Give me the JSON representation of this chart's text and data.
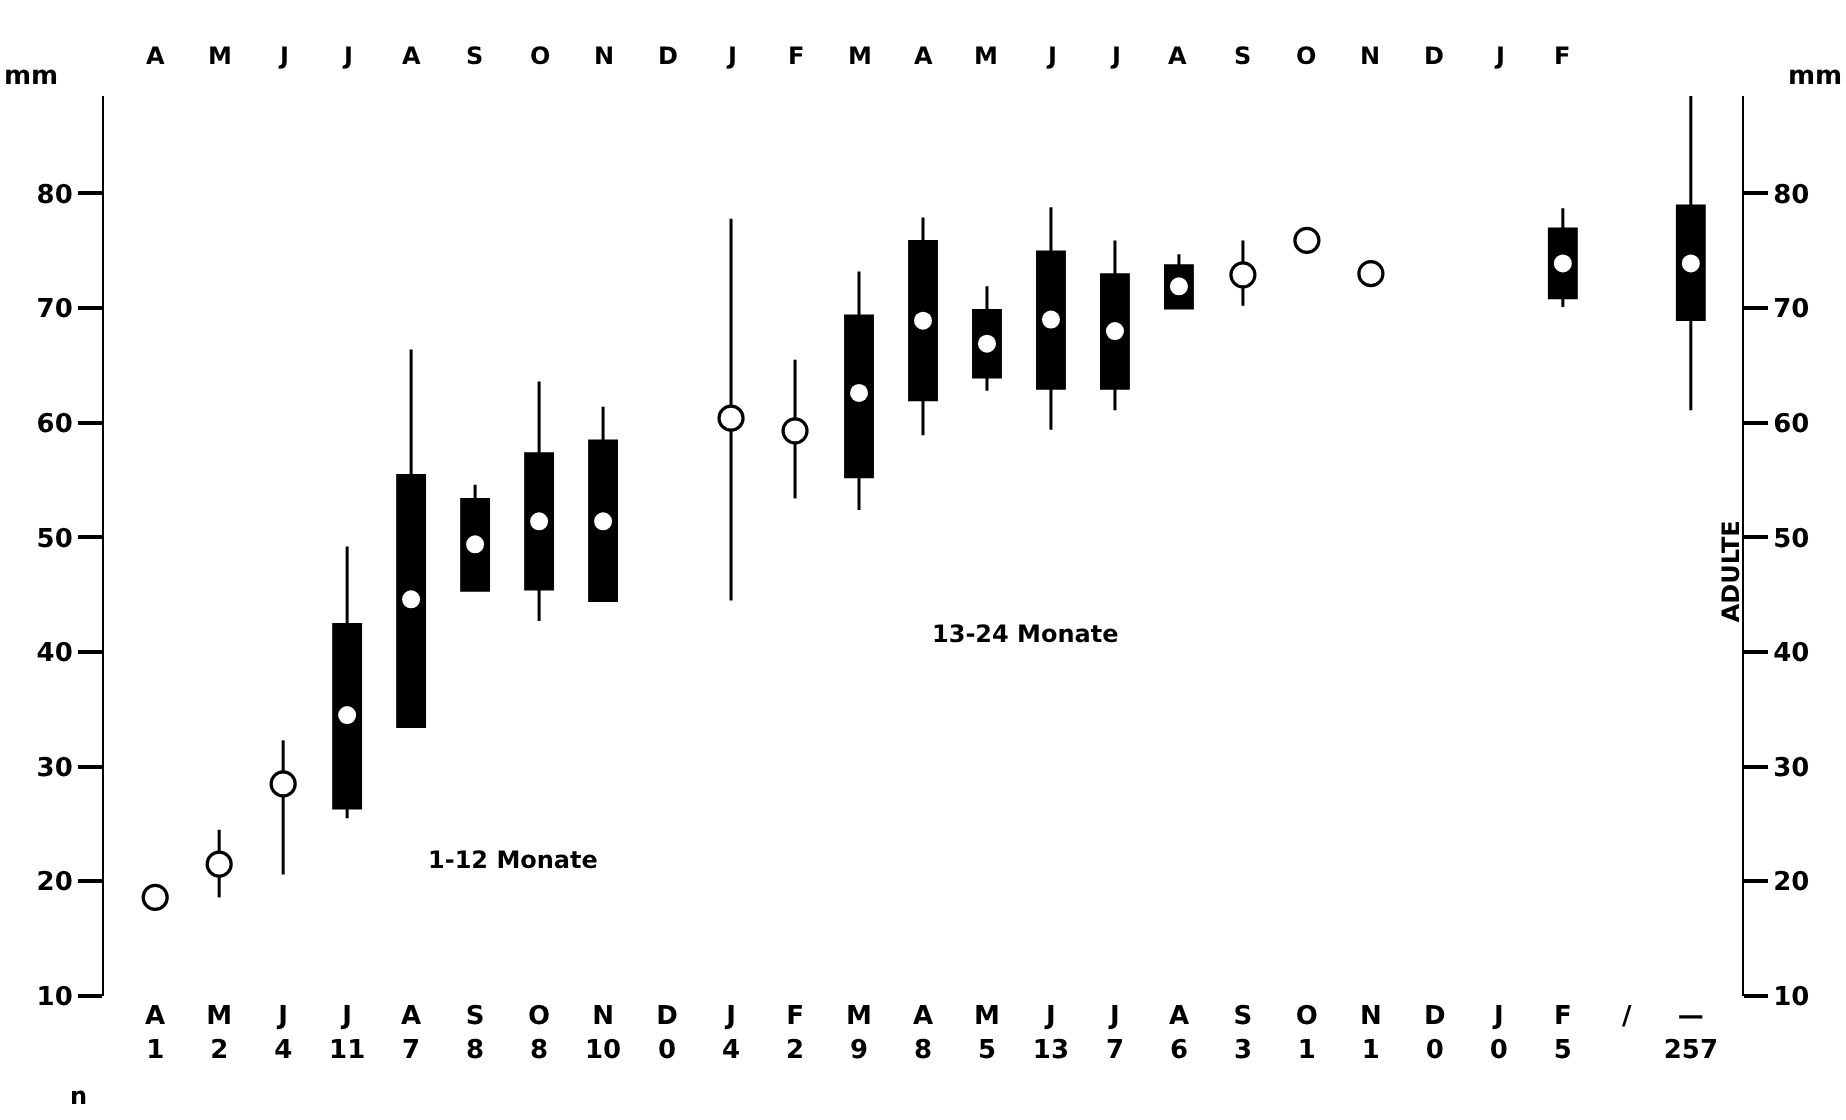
{
  "chart_data": {
    "type": "box",
    "ylabel": "mm",
    "y2label": "mm",
    "categories": [
      "A\n1",
      "M\n2",
      "J\n4",
      "J\n11",
      "A\n7",
      "S\n8",
      "O\n8",
      "N\n10",
      "D\n0",
      "J\n4",
      "F\n2",
      "M\n9",
      "A\n8",
      "M\n5",
      "J\n13",
      "J\n7",
      "A\n6",
      "S\n3",
      "O\n1",
      "N\n1",
      "D\n0",
      "J\n0",
      "F\n5",
      "/",
      "—\n257"
    ],
    "series": [
      {
        "color": "#000000",
        "boxes": [
          null,
          null,
          null,
          {
            "low": 25.5,
            "q1": 26.4,
            "median": 34.5,
            "q3": 42.4,
            "high": 49.2,
            "mean": 34.5
          },
          {
            "low": 33.5,
            "q1": 33.5,
            "median": 44.6,
            "q3": 55.4,
            "high": 66.4,
            "mean": 44.6
          },
          {
            "low": 45.4,
            "q1": 45.4,
            "median": 49.4,
            "q3": 53.3,
            "high": 54.6,
            "mean": 49.4
          },
          {
            "low": 42.7,
            "q1": 45.5,
            "median": 51.4,
            "q3": 57.3,
            "high": 63.6,
            "mean": 51.4
          },
          {
            "low": 44.5,
            "q1": 44.5,
            "median": 51.4,
            "q3": 58.4,
            "high": 61.4,
            "mean": 51.4
          },
          null,
          null,
          null,
          {
            "low": 52.4,
            "q1": 55.3,
            "median": 62.6,
            "q3": 69.3,
            "high": 73.2,
            "mean": 62.6
          },
          {
            "low": 58.9,
            "q1": 62.0,
            "median": 68.9,
            "q3": 75.8,
            "high": 77.9,
            "mean": 68.9
          },
          {
            "low": 62.8,
            "q1": 64.0,
            "median": 66.9,
            "q3": 69.8,
            "high": 71.9,
            "mean": 66.9
          },
          {
            "low": 59.4,
            "q1": 63.0,
            "median": 69.0,
            "q3": 74.9,
            "high": 78.8,
            "mean": 69.0
          },
          {
            "low": 61.1,
            "q1": 63.0,
            "median": 68.0,
            "q3": 72.9,
            "high": 75.9,
            "mean": 68.0
          },
          {
            "low": 70.0,
            "q1": 70.0,
            "median": 71.9,
            "q3": 73.7,
            "high": 74.7,
            "mean": 71.9
          },
          null,
          null,
          null,
          null,
          null,
          {
            "low": 70.1,
            "q1": 70.9,
            "median": 73.9,
            "q3": 76.9,
            "high": 78.7,
            "mean": 73.9
          },
          null,
          {
            "low": 61.1,
            "q1": 69.0,
            "median": 73.9,
            "q3": 78.9,
            "high": 88.5,
            "mean": 73.9
          }
        ]
      },
      {
        "type": "scatter",
        "color": "#000000",
        "values": [
          18.6,
          21.5,
          28.5,
          null,
          null,
          null,
          null,
          null,
          null,
          60.4,
          59.3,
          null,
          null,
          null,
          null,
          null,
          null,
          72.9,
          75.9,
          73.0,
          null,
          null,
          null,
          null,
          null
        ],
        "errors": [
          null,
          [
            18.6,
            24.5
          ],
          [
            20.6,
            32.3
          ],
          null,
          null,
          null,
          null,
          null,
          null,
          [
            44.5,
            77.8
          ],
          [
            53.4,
            65.5
          ],
          null,
          null,
          null,
          null,
          null,
          null,
          [
            70.2,
            75.9
          ],
          null,
          null,
          null,
          null,
          null,
          null,
          null
        ]
      }
    ],
    "ylim": [
      10,
      88.5
    ],
    "yticks": [
      10,
      20,
      30,
      40,
      50,
      60,
      70,
      80
    ],
    "y2lim": [
      10,
      88.5
    ],
    "y2ticks": [
      10,
      20,
      30,
      40,
      50,
      60,
      70,
      80
    ],
    "marker": "circle",
    "annotations": [
      "1-12 Monate",
      "13-24 Monate",
      "ADULTE",
      "n",
      "A",
      "M",
      "J",
      "J",
      "A",
      "S",
      "O",
      "N",
      "D",
      "J",
      "F",
      "M",
      "A",
      "M",
      "J",
      "J",
      "A",
      "S",
      "O",
      "N",
      "D",
      "J",
      "F"
    ]
  }
}
